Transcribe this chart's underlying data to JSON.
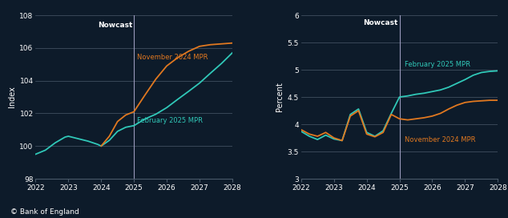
{
  "background_color": "#0d1b2a",
  "grid_color": "#4a5a6a",
  "text_color": "#ffffff",
  "nowcast_line_color": "#9999bb",
  "orange_color": "#e07820",
  "teal_color": "#30c8b8",
  "left": {
    "ylabel": "Index",
    "ylim": [
      98,
      108
    ],
    "yticks": [
      98,
      100,
      102,
      104,
      106,
      108
    ],
    "xlim": [
      2022,
      2028
    ],
    "xticks": [
      2022,
      2023,
      2024,
      2025,
      2026,
      2027,
      2028
    ],
    "nowcast_x": 2025,
    "nowcast_label": "Nowcast",
    "feb_label": "February 2025 MPR",
    "nov_label": "November 2024 MPR",
    "feb_x": [
      2022.0,
      2022.3,
      2022.6,
      2022.9,
      2023.0,
      2023.3,
      2023.6,
      2023.9,
      2024.0,
      2024.25,
      2024.5,
      2024.75,
      2025.0,
      2025.33,
      2025.67,
      2026.0,
      2026.33,
      2026.67,
      2027.0,
      2027.33,
      2027.67,
      2028.0
    ],
    "feb_y": [
      99.5,
      99.75,
      100.2,
      100.55,
      100.6,
      100.45,
      100.3,
      100.1,
      100.0,
      100.35,
      100.9,
      101.15,
      101.25,
      101.65,
      101.95,
      102.35,
      102.85,
      103.35,
      103.85,
      104.45,
      105.05,
      105.7
    ],
    "nov_x": [
      2024.0,
      2024.25,
      2024.5,
      2024.75,
      2025.0,
      2025.33,
      2025.67,
      2026.0,
      2026.33,
      2026.67,
      2027.0,
      2027.33,
      2027.67,
      2028.0
    ],
    "nov_y": [
      100.0,
      100.6,
      101.5,
      101.9,
      102.1,
      103.1,
      104.1,
      104.9,
      105.4,
      105.8,
      106.1,
      106.2,
      106.25,
      106.3
    ]
  },
  "right": {
    "ylabel": "Percent",
    "ylim": [
      3,
      6
    ],
    "yticks": [
      3,
      3.5,
      4,
      4.5,
      5,
      5.5,
      6
    ],
    "xlim": [
      2022,
      2028
    ],
    "xticks": [
      2022,
      2023,
      2024,
      2025,
      2026,
      2027,
      2028
    ],
    "nowcast_x": 2025,
    "nowcast_label": "Nowcast",
    "feb_label": "February 2025 MPR",
    "nov_label": "November 2024 MPR",
    "feb_x": [
      2022.0,
      2022.25,
      2022.5,
      2022.75,
      2023.0,
      2023.25,
      2023.5,
      2023.75,
      2024.0,
      2024.25,
      2024.5,
      2024.75,
      2025.0,
      2025.25,
      2025.5,
      2025.75,
      2026.0,
      2026.25,
      2026.5,
      2026.75,
      2027.0,
      2027.25,
      2027.5,
      2027.75,
      2028.0
    ],
    "feb_y": [
      3.87,
      3.78,
      3.72,
      3.8,
      3.73,
      3.7,
      4.18,
      4.28,
      3.85,
      3.78,
      3.88,
      4.2,
      4.5,
      4.52,
      4.55,
      4.57,
      4.6,
      4.63,
      4.68,
      4.75,
      4.82,
      4.9,
      4.95,
      4.97,
      4.98
    ],
    "nov_x": [
      2022.0,
      2022.25,
      2022.5,
      2022.75,
      2023.0,
      2023.25,
      2023.5,
      2023.75,
      2024.0,
      2024.25,
      2024.5,
      2024.75,
      2025.0,
      2025.25,
      2025.5,
      2025.75,
      2026.0,
      2026.25,
      2026.5,
      2026.75,
      2027.0,
      2027.25,
      2027.5,
      2027.75,
      2028.0
    ],
    "nov_y": [
      3.9,
      3.82,
      3.78,
      3.85,
      3.75,
      3.7,
      4.15,
      4.25,
      3.82,
      3.77,
      3.85,
      4.18,
      4.1,
      4.08,
      4.1,
      4.12,
      4.15,
      4.2,
      4.28,
      4.35,
      4.4,
      4.42,
      4.43,
      4.44,
      4.44
    ]
  },
  "footer": "© Bank of England"
}
